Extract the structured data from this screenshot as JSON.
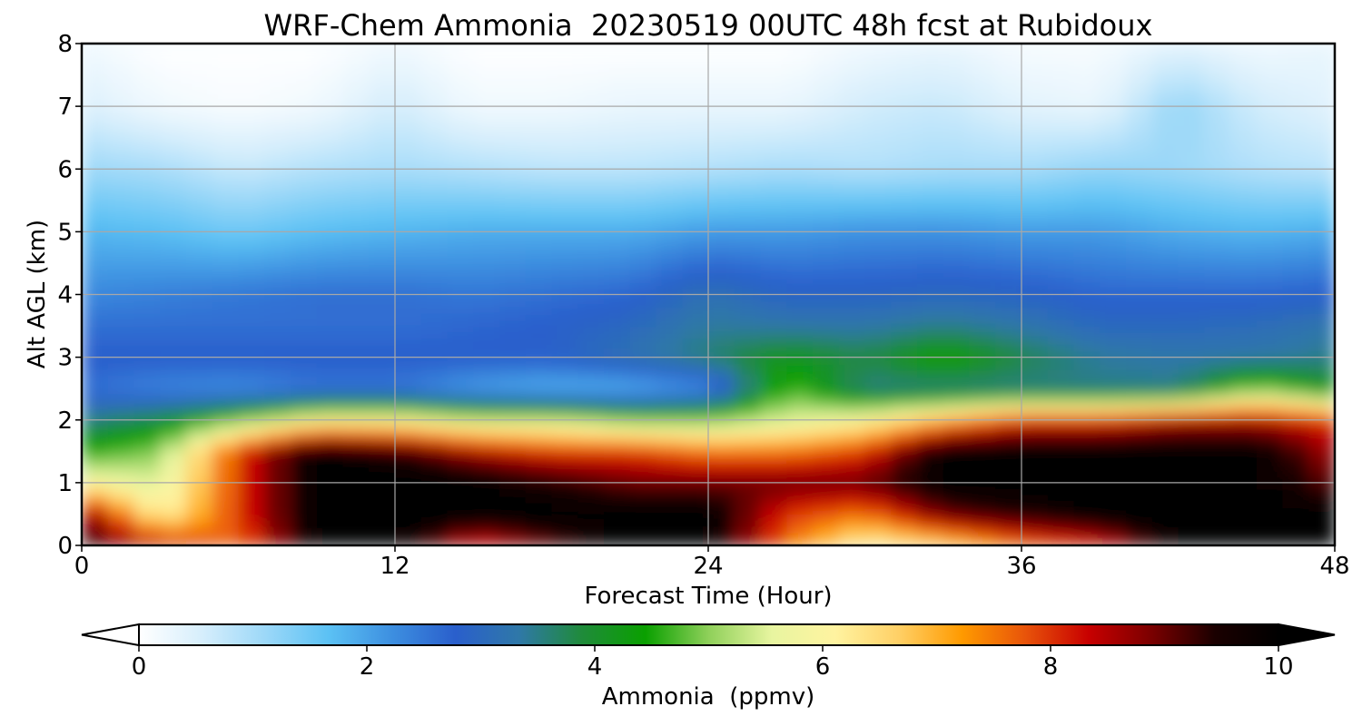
{
  "chart_data": {
    "type": "heatmap",
    "title": "WRF-Chem Ammonia  20230519 00UTC 48h fcst at Rubidoux",
    "xlabel": "Forecast Time (Hour)",
    "ylabel": "Alt AGL (km)",
    "xlim": [
      0,
      48
    ],
    "ylim": [
      0,
      8
    ],
    "xticks": [
      0,
      12,
      24,
      36,
      48
    ],
    "yticks": [
      0,
      1,
      2,
      3,
      4,
      5,
      6,
      7,
      8
    ],
    "grid": true,
    "colorbar": {
      "label": "Ammonia  (ppmv)",
      "range": [
        0,
        10
      ],
      "ticks": [
        0,
        2,
        4,
        6,
        8,
        10
      ],
      "extend": "both",
      "colors": [
        "#ffffff",
        "#d6eefc",
        "#9cd8f8",
        "#5bc1f4",
        "#3d8fe0",
        "#2a5fcc",
        "#2f78a8",
        "#1f8b3a",
        "#0aa000",
        "#8fd05a",
        "#e8f5a0",
        "#fff3a0",
        "#ffd066",
        "#ff9a00",
        "#e8540a",
        "#c80000",
        "#7a0000",
        "#1a0000",
        "#000000"
      ]
    },
    "grid_hours": [
      0,
      3,
      6,
      9,
      12,
      15,
      18,
      21,
      24,
      27,
      30,
      33,
      36,
      39,
      42,
      45,
      48
    ],
    "grid_heights_km": [
      0,
      0.5,
      1,
      1.5,
      2,
      2.5,
      3,
      3.5,
      4,
      5,
      6,
      7,
      8
    ],
    "values_ppmv": [
      [
        9.5,
        8.5,
        7.5,
        10,
        10,
        8,
        9,
        10,
        10,
        7.5,
        6,
        6.5,
        7.5,
        8,
        10,
        10,
        10
      ],
      [
        9,
        6,
        8,
        10,
        10,
        10,
        10,
        10,
        10,
        8,
        7.5,
        9,
        9.5,
        10,
        10,
        10,
        10
      ],
      [
        6,
        5.5,
        8,
        10,
        10,
        10,
        9.5,
        9,
        9,
        9,
        9,
        10,
        10,
        10,
        10,
        10,
        9
      ],
      [
        4.5,
        5,
        8,
        10,
        9.5,
        8.5,
        8,
        8,
        7.5,
        7.5,
        8,
        10,
        10,
        10,
        10,
        10,
        8.5
      ],
      [
        3.5,
        4,
        5,
        6,
        6,
        5.5,
        5.5,
        5,
        5,
        5.5,
        6,
        7,
        8,
        8,
        8.5,
        8.5,
        8
      ],
      [
        2.6,
        2.3,
        2.2,
        2.5,
        2.5,
        2,
        1.8,
        1.8,
        2.2,
        4.8,
        3.5,
        3.5,
        3.5,
        3.5,
        3.5,
        5,
        4
      ],
      [
        2.8,
        2.8,
        2.8,
        2.8,
        2.8,
        2.8,
        2.8,
        3.2,
        3.6,
        4.2,
        3.8,
        4.5,
        3.8,
        3.4,
        3.3,
        3.3,
        3.5
      ],
      [
        2.6,
        2.6,
        2.6,
        2.6,
        2.6,
        2.7,
        2.8,
        3,
        3.4,
        3.3,
        3.3,
        3.5,
        3.3,
        3,
        3,
        3.1,
        3.3
      ],
      [
        2.3,
        2.4,
        2.5,
        2.6,
        2.6,
        2.5,
        2.6,
        2.7,
        3.2,
        2.9,
        2.9,
        3,
        2.9,
        2.7,
        2.7,
        2.7,
        2.8
      ],
      [
        1.8,
        1.7,
        1.5,
        1.7,
        1.8,
        1.9,
        1.9,
        1.9,
        2.1,
        2.1,
        2.2,
        2.2,
        2.1,
        2.1,
        1.9,
        1.8,
        1.9
      ],
      [
        1.1,
        1,
        0.7,
        0.9,
        1,
        0.9,
        0.8,
        0.8,
        0.9,
        1,
        0.9,
        1,
        1,
        1.2,
        1.1,
        0.9,
        0.8
      ],
      [
        0.5,
        0.2,
        0.1,
        0.2,
        0.6,
        0.2,
        0.2,
        0.3,
        0.3,
        0.3,
        0.6,
        0.7,
        0.4,
        0.3,
        1.2,
        0.6,
        0.4
      ],
      [
        0.2,
        0,
        0,
        0,
        0.2,
        0,
        0,
        0,
        0,
        0,
        0.2,
        0.3,
        0.1,
        0.1,
        0.4,
        0.2,
        0.3
      ]
    ]
  }
}
